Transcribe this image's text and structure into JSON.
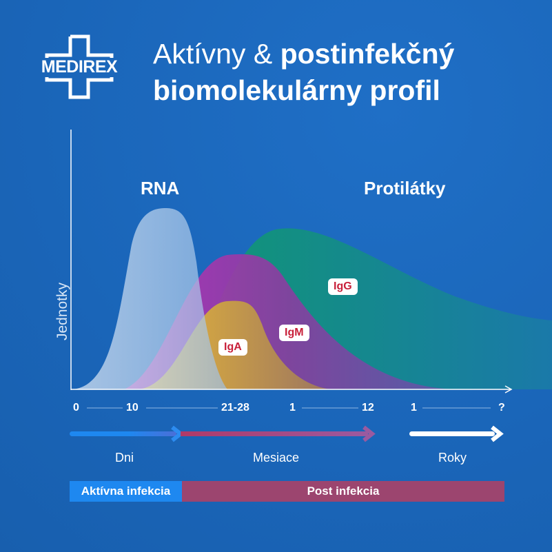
{
  "logo": {
    "text": "MEDIREX"
  },
  "title": {
    "line1_light": "Aktívny & ",
    "line1_bold": "postinfekčný",
    "line2": "biomolekulárny profil"
  },
  "chart": {
    "y_label": "Jednotky",
    "group_labels": {
      "rna": "RNA",
      "antibodies": "Protilátky"
    },
    "series": [
      {
        "name": "RNA",
        "color": "#cfe0f3"
      },
      {
        "name": "IgA",
        "color": "#e6b92e"
      },
      {
        "name": "IgM",
        "color": "#a62fb0"
      },
      {
        "name": "IgG",
        "color": "#12907a"
      }
    ],
    "badges": {
      "igg": "IgG",
      "igm": "IgM",
      "iga": "IgA"
    },
    "ticks": [
      "0",
      "10",
      "21-28",
      "1",
      "12",
      "1",
      "?"
    ],
    "units": {
      "days": "Dni",
      "months": "Mesiace",
      "years": "Roky"
    },
    "phases": {
      "active": "Aktívna infekcia",
      "post": "Post infekcia"
    },
    "colors": {
      "active": "#1e88f0",
      "post": "#9c456f"
    }
  }
}
